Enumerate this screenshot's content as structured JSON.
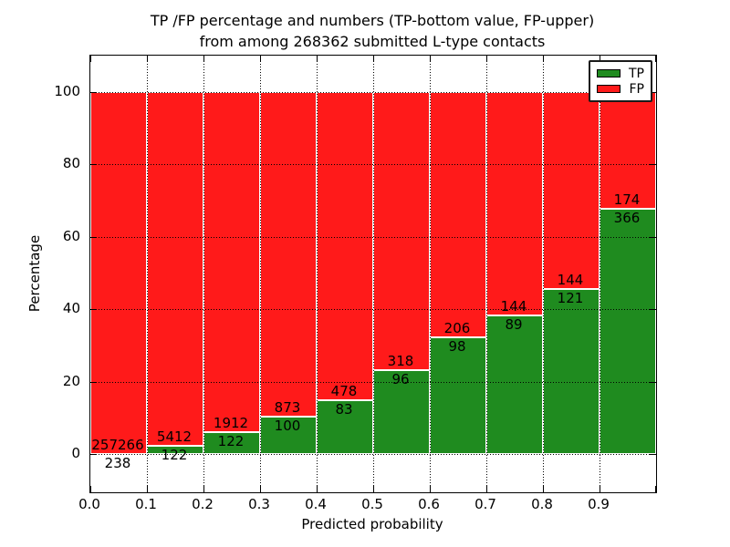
{
  "title": {
    "line1": "TP /FP percentage and numbers (TP-bottom value, FP-upper)",
    "line2": "from among 268362 submitted L-type contacts"
  },
  "axes": {
    "xlabel": "Predicted probability",
    "ylabel": "Percentage"
  },
  "legend": {
    "items": [
      {
        "label": "TP",
        "color": "#1f8b1f"
      },
      {
        "label": "FP",
        "color": "#ff1a1a"
      }
    ]
  },
  "chart_data": {
    "type": "bar",
    "subtype": "stacked-percentage",
    "title": "TP /FP percentage and numbers (TP-bottom value, FP-upper) from among 268362 submitted L-type contacts",
    "xlabel": "Predicted probability",
    "ylabel": "Percentage",
    "total_submitted": 268362,
    "bin_edges": [
      0.0,
      0.1,
      0.2,
      0.3,
      0.4,
      0.5,
      0.6,
      0.7,
      0.8,
      0.9,
      1.0
    ],
    "x_tick_labels": [
      "0.0",
      "0.1",
      "0.2",
      "0.3",
      "0.4",
      "0.5",
      "0.6",
      "0.7",
      "0.8",
      "0.9"
    ],
    "y_ticks": [
      0,
      20,
      40,
      60,
      80,
      100
    ],
    "ylim": [
      -10.6,
      110
    ],
    "grid": "dotted",
    "legend_position": "upper right",
    "series": [
      {
        "name": "TP",
        "color": "#1f8b1f",
        "counts": [
          238,
          122,
          122,
          100,
          83,
          96,
          98,
          89,
          121,
          366
        ]
      },
      {
        "name": "FP",
        "color": "#ff1a1a",
        "counts": [
          257266,
          5412,
          1912,
          873,
          478,
          318,
          206,
          144,
          144,
          174
        ]
      }
    ],
    "tp_percent_of_bin": [
      0.09,
      2.2,
      6.0,
      10.28,
      14.8,
      23.19,
      32.24,
      38.2,
      45.66,
      67.78
    ]
  }
}
